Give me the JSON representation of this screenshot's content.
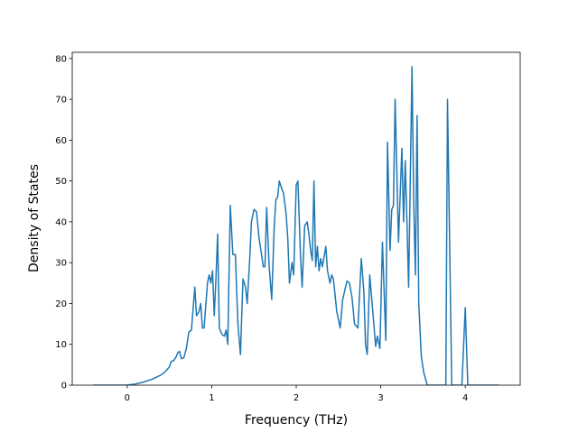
{
  "chart_data": {
    "type": "line",
    "xlabel": "Frequency (THz)",
    "ylabel": "Density of States",
    "x": [
      -0.4,
      0,
      0.1,
      0.2,
      0.3,
      0.4,
      0.45,
      0.5,
      0.52,
      0.55,
      0.58,
      0.6,
      0.62,
      0.64,
      0.67,
      0.7,
      0.73,
      0.76,
      0.8,
      0.82,
      0.85,
      0.87,
      0.89,
      0.91,
      0.95,
      0.97,
      0.99,
      1.01,
      1.03,
      1.05,
      1.07,
      1.09,
      1.12,
      1.15,
      1.17,
      1.19,
      1.22,
      1.25,
      1.28,
      1.31,
      1.34,
      1.37,
      1.4,
      1.42,
      1.45,
      1.47,
      1.5,
      1.53,
      1.56,
      1.59,
      1.61,
      1.63,
      1.65,
      1.68,
      1.71,
      1.74,
      1.76,
      1.78,
      1.8,
      1.83,
      1.85,
      1.88,
      1.9,
      1.92,
      1.95,
      1.97,
      2.0,
      2.02,
      2.05,
      2.07,
      2.1,
      2.13,
      2.15,
      2.17,
      2.19,
      2.21,
      2.23,
      2.25,
      2.27,
      2.29,
      2.31,
      2.35,
      2.37,
      2.4,
      2.42,
      2.44,
      2.48,
      2.52,
      2.55,
      2.6,
      2.63,
      2.66,
      2.69,
      2.73,
      2.77,
      2.8,
      2.82,
      2.84,
      2.87,
      2.91,
      2.94,
      2.96,
      2.99,
      3.02,
      3.06,
      3.08,
      3.11,
      3.13,
      3.15,
      3.17,
      3.21,
      3.25,
      3.27,
      3.29,
      3.31,
      3.33,
      3.37,
      3.39,
      3.41,
      3.43,
      3.45,
      3.48,
      3.51,
      3.55,
      3.77,
      3.79,
      3.84,
      3.96,
      4.0,
      4.03,
      4.4
    ],
    "values": [
      0,
      0,
      0.3,
      0.8,
      1.5,
      2.5,
      3.3,
      4.5,
      5.8,
      6,
      7,
      8,
      8.3,
      6.5,
      6.7,
      9,
      13,
      13.5,
      24,
      17,
      18,
      20,
      14,
      14,
      25,
      27,
      25,
      28,
      17,
      26,
      37,
      14,
      12.5,
      12,
      13.5,
      10,
      44,
      32,
      32,
      15,
      7.5,
      26,
      24,
      20,
      31,
      40,
      43,
      42.5,
      36,
      32,
      29,
      29,
      43.5,
      29,
      21,
      39,
      45.5,
      46,
      50,
      48,
      47,
      42,
      36,
      25,
      30,
      27,
      49,
      50,
      32,
      24,
      39,
      40,
      37,
      33,
      30.5,
      50,
      29,
      34,
      28,
      31,
      29,
      34,
      28,
      25,
      27,
      26,
      18,
      14,
      21,
      25.5,
      25,
      21.5,
      15,
      14,
      31,
      23,
      10,
      7.5,
      27,
      17,
      9.5,
      12,
      9,
      35,
      11,
      59.5,
      33,
      43,
      44,
      70,
      35,
      58,
      40,
      55,
      40,
      24,
      78,
      45,
      27,
      66,
      20,
      7,
      3,
      0,
      0,
      70,
      0,
      0,
      19,
      0,
      0
    ],
    "color": "#1f77b4",
    "xlim": [
      -0.65,
      4.65
    ],
    "ylim": [
      0,
      81.5
    ],
    "xticks": [
      0,
      1,
      2,
      3,
      4
    ],
    "yticks": [
      0,
      10,
      20,
      30,
      40,
      50,
      60,
      70,
      80
    ]
  }
}
